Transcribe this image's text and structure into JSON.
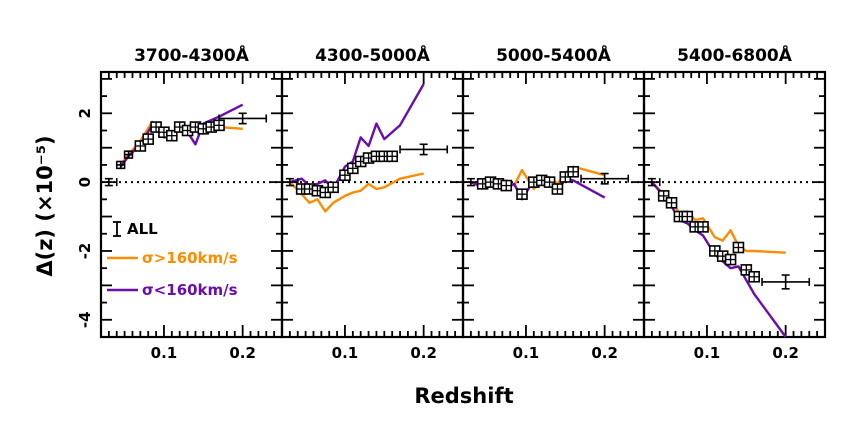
{
  "chart_data": {
    "type": "line",
    "xlabel": "Redshift",
    "ylabel": "Δ(z)  (×10⁻⁵)",
    "xlim": [
      0.02,
      0.25
    ],
    "ylim": [
      -4.5,
      3.2
    ],
    "x_ticks": [
      0.1,
      0.2
    ],
    "y_ticks": [
      -4,
      -2,
      0,
      2
    ],
    "zero_line": "dotted",
    "colors": {
      "ALL": "#000000",
      "high_sigma": "#ff8c00",
      "low_sigma": "#6a0dad"
    },
    "legend": {
      "placement": "left",
      "entries": [
        {
          "key": "ALL",
          "label": "ALL",
          "color": "#000000"
        },
        {
          "key": "high_sigma",
          "label": "σ>160km/s",
          "color": "#ff8c00"
        },
        {
          "key": "low_sigma",
          "label": "σ<160km/s",
          "color": "#6a0dad"
        }
      ]
    },
    "panels": [
      {
        "title": "3700-4300Å",
        "all": {
          "points": [
            [
              0.07,
              1.05
            ],
            [
              0.08,
              1.25
            ],
            [
              0.09,
              1.6
            ],
            [
              0.1,
              1.45
            ],
            [
              0.11,
              1.35
            ],
            [
              0.12,
              1.6
            ],
            [
              0.13,
              1.5
            ],
            [
              0.14,
              1.6
            ],
            [
              0.15,
              1.55
            ],
            [
              0.16,
              1.6
            ],
            [
              0.17,
              1.65
            ]
          ],
          "errorbars": [
            {
              "x": 0.03,
              "y": 0.0,
              "xerr": 0.01,
              "yerr": 0.1
            },
            {
              "x": 0.045,
              "y": 0.5,
              "xerr": 0.005,
              "yerr": 0.1
            },
            {
              "x": 0.055,
              "y": 0.8,
              "xerr": 0.005,
              "yerr": 0.1
            },
            {
              "x": 0.2,
              "y": 1.85,
              "xerr": 0.03,
              "yerr": 0.15
            }
          ]
        },
        "high_sigma": {
          "x": [
            0.045,
            0.055,
            0.07,
            0.085,
            0.1,
            0.11,
            0.12,
            0.13,
            0.14,
            0.15,
            0.17,
            0.2
          ],
          "y": [
            0.5,
            0.8,
            1.2,
            1.75,
            1.45,
            1.35,
            1.6,
            1.5,
            1.55,
            1.4,
            1.6,
            1.55
          ]
        },
        "low_sigma": {
          "x": [
            0.045,
            0.055,
            0.07,
            0.085,
            0.1,
            0.11,
            0.12,
            0.13,
            0.14,
            0.15,
            0.17,
            0.2
          ],
          "y": [
            0.45,
            0.75,
            1.1,
            1.65,
            1.3,
            1.35,
            1.6,
            1.45,
            1.1,
            1.7,
            1.9,
            2.25
          ]
        }
      },
      {
        "title": "4300-5000Å",
        "all": {
          "points": [
            [
              0.045,
              -0.2
            ],
            [
              0.055,
              -0.2
            ],
            [
              0.065,
              -0.25
            ],
            [
              0.075,
              -0.3
            ],
            [
              0.085,
              -0.15
            ],
            [
              0.1,
              0.2
            ],
            [
              0.11,
              0.4
            ],
            [
              0.12,
              0.6
            ],
            [
              0.13,
              0.7
            ],
            [
              0.14,
              0.75
            ],
            [
              0.15,
              0.75
            ],
            [
              0.16,
              0.75
            ]
          ],
          "errorbars": [
            {
              "x": 0.03,
              "y": 0.0,
              "xerr": 0.01,
              "yerr": 0.1
            },
            {
              "x": 0.2,
              "y": 0.95,
              "xerr": 0.03,
              "yerr": 0.15
            }
          ]
        },
        "high_sigma": {
          "x": [
            0.03,
            0.045,
            0.055,
            0.065,
            0.075,
            0.085,
            0.1,
            0.11,
            0.12,
            0.13,
            0.14,
            0.15,
            0.17,
            0.2
          ],
          "y": [
            0.0,
            -0.35,
            -0.6,
            -0.5,
            -0.85,
            -0.6,
            -0.4,
            -0.3,
            -0.25,
            -0.05,
            -0.2,
            -0.15,
            0.1,
            0.25
          ]
        },
        "low_sigma": {
          "x": [
            0.03,
            0.045,
            0.055,
            0.065,
            0.075,
            0.085,
            0.1,
            0.11,
            0.12,
            0.13,
            0.14,
            0.15,
            0.17,
            0.2
          ],
          "y": [
            0.0,
            0.1,
            -0.1,
            -0.05,
            0.05,
            -0.2,
            0.45,
            0.6,
            1.3,
            1.05,
            1.7,
            1.25,
            1.65,
            2.85
          ]
        }
      },
      {
        "title": "5000-5400Å",
        "all": {
          "points": [
            [
              0.045,
              -0.05
            ],
            [
              0.055,
              0.0
            ],
            [
              0.065,
              -0.05
            ],
            [
              0.075,
              -0.1
            ],
            [
              0.095,
              -0.35
            ],
            [
              0.11,
              0.0
            ],
            [
              0.12,
              0.05
            ],
            [
              0.13,
              0.0
            ],
            [
              0.14,
              -0.2
            ],
            [
              0.15,
              0.15
            ],
            [
              0.16,
              0.3
            ]
          ],
          "errorbars": [
            {
              "x": 0.03,
              "y": 0.0,
              "xerr": 0.01,
              "yerr": 0.1
            },
            {
              "x": 0.2,
              "y": 0.1,
              "xerr": 0.03,
              "yerr": 0.15
            }
          ]
        },
        "high_sigma": {
          "x": [
            0.03,
            0.045,
            0.055,
            0.065,
            0.075,
            0.085,
            0.095,
            0.11,
            0.12,
            0.13,
            0.14,
            0.15,
            0.16,
            0.2
          ],
          "y": [
            0.0,
            -0.05,
            0.1,
            -0.1,
            0.05,
            -0.1,
            0.35,
            -0.2,
            0.1,
            0.15,
            -0.05,
            0.25,
            0.45,
            0.2
          ]
        },
        "low_sigma": {
          "x": [
            0.03,
            0.045,
            0.055,
            0.065,
            0.075,
            0.085,
            0.095,
            0.11,
            0.12,
            0.13,
            0.14,
            0.15,
            0.16,
            0.2
          ],
          "y": [
            0.0,
            -0.15,
            -0.05,
            -0.1,
            -0.15,
            -0.05,
            -0.5,
            0.05,
            0.0,
            0.05,
            -0.3,
            0.1,
            0.05,
            -0.45
          ]
        }
      },
      {
        "title": "5400-6800Å",
        "all": {
          "points": [
            [
              0.045,
              -0.4
            ],
            [
              0.055,
              -0.6
            ],
            [
              0.065,
              -1.0
            ],
            [
              0.075,
              -1.0
            ],
            [
              0.085,
              -1.3
            ],
            [
              0.095,
              -1.3
            ],
            [
              0.11,
              -2.0
            ],
            [
              0.12,
              -2.15
            ],
            [
              0.13,
              -2.25
            ],
            [
              0.14,
              -1.9
            ],
            [
              0.15,
              -2.55
            ],
            [
              0.16,
              -2.75
            ]
          ],
          "errorbars": [
            {
              "x": 0.03,
              "y": 0.0,
              "xerr": 0.01,
              "yerr": 0.1
            },
            {
              "x": 0.2,
              "y": -2.9,
              "xerr": 0.03,
              "yerr": 0.2
            }
          ]
        },
        "high_sigma": {
          "x": [
            0.03,
            0.045,
            0.055,
            0.065,
            0.075,
            0.085,
            0.095,
            0.11,
            0.12,
            0.13,
            0.14,
            0.15,
            0.16,
            0.2
          ],
          "y": [
            0.0,
            -0.35,
            -0.55,
            -0.9,
            -0.85,
            -1.1,
            -1.05,
            -1.6,
            -1.7,
            -1.4,
            -1.85,
            -2.0,
            -2.0,
            -2.05
          ]
        },
        "low_sigma": {
          "x": [
            0.03,
            0.045,
            0.055,
            0.065,
            0.075,
            0.085,
            0.095,
            0.11,
            0.12,
            0.13,
            0.14,
            0.15,
            0.16,
            0.2
          ],
          "y": [
            0.0,
            -0.4,
            -0.7,
            -1.1,
            -1.2,
            -1.4,
            -1.55,
            -2.1,
            -2.3,
            -2.5,
            -2.45,
            -2.85,
            -3.25,
            -4.5
          ]
        }
      }
    ]
  }
}
